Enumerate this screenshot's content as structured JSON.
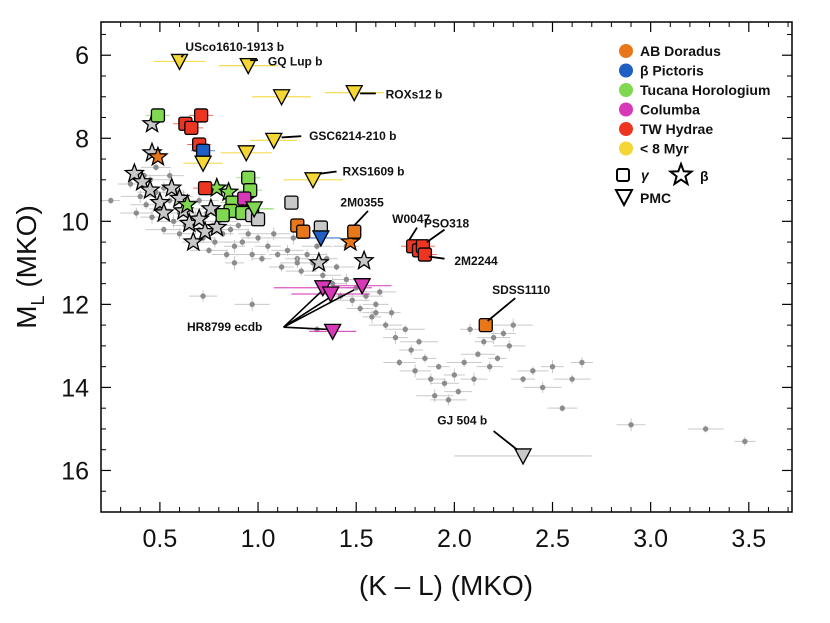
{
  "chart_data": {
    "type": "scatter",
    "xlabel": "(K – L) (MKO)",
    "ylabel_main": "M",
    "ylabel_sub": "L",
    "ylabel_rest": " (MKO)",
    "xlim": [
      0.2,
      3.72
    ],
    "ylim": [
      17.0,
      5.2
    ],
    "xticks": [
      0.5,
      1.0,
      1.5,
      2.0,
      2.5,
      3.0,
      3.5
    ],
    "xtick_labels": [
      "0.5",
      "1.0",
      "1.5",
      "2.0",
      "2.5",
      "3.0",
      "3.5"
    ],
    "yticks": [
      6,
      8,
      10,
      12,
      14,
      16
    ],
    "ytick_labels": [
      "6",
      "8",
      "10",
      "12",
      "14",
      "16"
    ],
    "colors": {
      "AB Doradus": "#e8771a",
      "β Pictoris": "#1f5fc4",
      "Tucana Horologium": "#7fd84f",
      "Columba": "#d838b8",
      "TW Hydrae": "#ee3522",
      "< 8 Myr": "#f4d634",
      "field": "#8c8c8c",
      "neutral": "#c8c8c8"
    },
    "legend": {
      "groups": [
        {
          "label": "AB Doradus",
          "color": "#e8771a"
        },
        {
          "label": "β Pictoris",
          "color": "#1f5fc4"
        },
        {
          "label": "Tucana Horologium",
          "color": "#7fd84f"
        },
        {
          "label": "Columba",
          "color": "#d838b8"
        },
        {
          "label": "TW Hydrae",
          "color": "#ee3522"
        },
        {
          "label": "< 8 Myr",
          "color": "#f4d634"
        }
      ],
      "gamma_label": "γ",
      "beta_label": "β",
      "pmc_label": "PMC",
      "placement": "top-right"
    },
    "field_points": [
      [
        0.25,
        9.5
      ],
      [
        0.35,
        9.1
      ],
      [
        0.38,
        9.8
      ],
      [
        0.4,
        9.4
      ],
      [
        0.42,
        8.9
      ],
      [
        0.43,
        9.6
      ],
      [
        0.45,
        9.0
      ],
      [
        0.46,
        9.9
      ],
      [
        0.48,
        8.7
      ],
      [
        0.48,
        9.3
      ],
      [
        0.5,
        9.7
      ],
      [
        0.52,
        9.2
      ],
      [
        0.52,
        10.2
      ],
      [
        0.55,
        9.5
      ],
      [
        0.55,
        8.9
      ],
      [
        0.57,
        10.0
      ],
      [
        0.58,
        9.3
      ],
      [
        0.6,
        9.8
      ],
      [
        0.6,
        10.3
      ],
      [
        0.62,
        9.4
      ],
      [
        0.63,
        10.1
      ],
      [
        0.65,
        9.7
      ],
      [
        0.66,
        10.5
      ],
      [
        0.68,
        9.9
      ],
      [
        0.7,
        10.2
      ],
      [
        0.7,
        9.5
      ],
      [
        0.72,
        10.4
      ],
      [
        0.74,
        9.8
      ],
      [
        0.75,
        10.7
      ],
      [
        0.77,
        10.1
      ],
      [
        0.78,
        10.5
      ],
      [
        0.8,
        10.0
      ],
      [
        0.82,
        10.3
      ],
      [
        0.84,
        10.8
      ],
      [
        0.86,
        10.2
      ],
      [
        0.88,
        10.6
      ],
      [
        0.9,
        10.1
      ],
      [
        0.92,
        10.5
      ],
      [
        0.95,
        10.3
      ],
      [
        0.97,
        10.8
      ],
      [
        1.0,
        10.4
      ],
      [
        1.02,
        10.9
      ],
      [
        1.05,
        10.6
      ],
      [
        1.08,
        10.3
      ],
      [
        1.1,
        10.8
      ],
      [
        1.12,
        11.1
      ],
      [
        1.15,
        10.7
      ],
      [
        1.18,
        10.4
      ],
      [
        1.2,
        10.9
      ],
      [
        1.22,
        11.2
      ],
      [
        1.25,
        10.8
      ],
      [
        1.28,
        11.0
      ],
      [
        1.3,
        10.6
      ],
      [
        1.33,
        11.3
      ],
      [
        1.35,
        10.9
      ],
      [
        1.38,
        11.5
      ],
      [
        1.4,
        11.1
      ],
      [
        1.42,
        11.8
      ],
      [
        1.45,
        11.4
      ],
      [
        1.48,
        11.9
      ],
      [
        1.5,
        11.6
      ],
      [
        1.52,
        12.1
      ],
      [
        1.55,
        11.8
      ],
      [
        1.58,
        12.3
      ],
      [
        1.6,
        12.0
      ],
      [
        1.65,
        12.5
      ],
      [
        1.68,
        12.2
      ],
      [
        1.7,
        12.8
      ],
      [
        1.72,
        13.4
      ],
      [
        1.75,
        12.6
      ],
      [
        1.78,
        13.1
      ],
      [
        1.8,
        13.6
      ],
      [
        1.82,
        12.9
      ],
      [
        1.85,
        13.3
      ],
      [
        1.88,
        13.8
      ],
      [
        1.9,
        14.2
      ],
      [
        1.92,
        13.5
      ],
      [
        1.95,
        13.9
      ],
      [
        1.97,
        14.3
      ],
      [
        2.0,
        13.7
      ],
      [
        2.02,
        14.1
      ],
      [
        2.05,
        13.4
      ],
      [
        2.08,
        12.6
      ],
      [
        2.1,
        13.8
      ],
      [
        2.12,
        13.2
      ],
      [
        2.15,
        12.9
      ],
      [
        2.18,
        13.5
      ],
      [
        2.2,
        12.8
      ],
      [
        2.22,
        13.3
      ],
      [
        2.25,
        12.7
      ],
      [
        2.28,
        13.0
      ],
      [
        2.3,
        12.5
      ],
      [
        2.35,
        13.8
      ],
      [
        2.4,
        13.6
      ],
      [
        2.45,
        14.0
      ],
      [
        2.5,
        13.5
      ],
      [
        2.55,
        14.5
      ],
      [
        2.6,
        13.8
      ],
      [
        2.65,
        13.4
      ],
      [
        2.9,
        14.9
      ],
      [
        3.28,
        15.0
      ],
      [
        3.48,
        15.3
      ],
      [
        0.72,
        11.8
      ],
      [
        0.97,
        12.0
      ],
      [
        1.3,
        12.6
      ],
      [
        1.6,
        12.2
      ],
      [
        1.2,
        11.0
      ],
      [
        0.88,
        11.0
      ],
      [
        1.45,
        10.6
      ],
      [
        1.62,
        11.7
      ]
    ],
    "gamma_squares": [
      {
        "x": 0.49,
        "y": 7.45,
        "g": "Tucana Horologium"
      },
      {
        "x": 0.63,
        "y": 7.65,
        "g": "TW Hydrae"
      },
      {
        "x": 0.66,
        "y": 7.75,
        "g": "TW Hydrae"
      },
      {
        "x": 0.71,
        "y": 7.45,
        "g": "TW Hydrae"
      },
      {
        "x": 0.7,
        "y": 8.15,
        "g": "TW Hydrae"
      },
      {
        "x": 0.72,
        "y": 8.3,
        "g": "β Pictoris"
      },
      {
        "x": 0.73,
        "y": 9.2,
        "g": "TW Hydrae"
      },
      {
        "x": 0.95,
        "y": 8.95,
        "g": "Tucana Horologium"
      },
      {
        "x": 0.96,
        "y": 9.25,
        "g": "Tucana Horologium"
      },
      {
        "x": 0.87,
        "y": 9.55,
        "g": "Tucana Horologium"
      },
      {
        "x": 0.86,
        "y": 9.75,
        "g": "Tucana Horologium"
      },
      {
        "x": 0.82,
        "y": 9.85,
        "g": "Tucana Horologium"
      },
      {
        "x": 0.92,
        "y": 9.8,
        "g": "Tucana Horologium"
      },
      {
        "x": 0.97,
        "y": 9.85,
        "g": "neutral"
      },
      {
        "x": 1.0,
        "y": 9.95,
        "g": "neutral"
      },
      {
        "x": 0.93,
        "y": 9.45,
        "g": "Columba"
      },
      {
        "x": 1.17,
        "y": 9.55,
        "g": "neutral"
      },
      {
        "x": 1.2,
        "y": 10.1,
        "g": "AB Doradus"
      },
      {
        "x": 1.23,
        "y": 10.25,
        "g": "AB Doradus"
      },
      {
        "x": 1.32,
        "y": 10.15,
        "g": "neutral"
      },
      {
        "x": 1.49,
        "y": 10.25,
        "g": "AB Doradus"
      },
      {
        "x": 1.79,
        "y": 10.6,
        "g": "TW Hydrae"
      },
      {
        "x": 1.82,
        "y": 10.7,
        "g": "TW Hydrae"
      },
      {
        "x": 1.84,
        "y": 10.6,
        "g": "TW Hydrae"
      },
      {
        "x": 1.85,
        "y": 10.8,
        "g": "TW Hydrae"
      },
      {
        "x": 2.16,
        "y": 12.5,
        "g": "AB Doradus"
      }
    ],
    "beta_stars": [
      {
        "x": 0.46,
        "y": 7.65,
        "g": "neutral"
      },
      {
        "x": 0.46,
        "y": 8.35,
        "g": "neutral"
      },
      {
        "x": 0.49,
        "y": 8.45,
        "g": "AB Doradus"
      },
      {
        "x": 0.37,
        "y": 8.85,
        "g": "neutral"
      },
      {
        "x": 0.41,
        "y": 9.05,
        "g": "neutral"
      },
      {
        "x": 0.45,
        "y": 9.25,
        "g": "neutral"
      },
      {
        "x": 0.5,
        "y": 9.55,
        "g": "neutral"
      },
      {
        "x": 0.52,
        "y": 9.8,
        "g": "neutral"
      },
      {
        "x": 0.56,
        "y": 9.2,
        "g": "neutral"
      },
      {
        "x": 0.6,
        "y": 9.45,
        "g": "neutral"
      },
      {
        "x": 0.62,
        "y": 9.75,
        "g": "neutral"
      },
      {
        "x": 0.65,
        "y": 10.05,
        "g": "neutral"
      },
      {
        "x": 0.67,
        "y": 10.5,
        "g": "neutral"
      },
      {
        "x": 0.7,
        "y": 9.95,
        "g": "neutral"
      },
      {
        "x": 0.73,
        "y": 10.25,
        "g": "neutral"
      },
      {
        "x": 0.76,
        "y": 9.7,
        "g": "neutral"
      },
      {
        "x": 0.79,
        "y": 10.15,
        "g": "neutral"
      },
      {
        "x": 0.64,
        "y": 9.6,
        "g": "Tucana Horologium"
      },
      {
        "x": 0.79,
        "y": 9.2,
        "g": "Tucana Horologium"
      },
      {
        "x": 0.85,
        "y": 9.3,
        "g": "Tucana Horologium"
      },
      {
        "x": 0.93,
        "y": 9.5,
        "g": "Columba"
      },
      {
        "x": 1.31,
        "y": 11.0,
        "g": "neutral"
      },
      {
        "x": 1.47,
        "y": 10.5,
        "g": "AB Doradus"
      },
      {
        "x": 1.54,
        "y": 10.95,
        "g": "neutral"
      }
    ],
    "pmc_triangles": [
      {
        "x": 0.6,
        "y": 6.15,
        "g": "< 8 Myr",
        "xerr": 0.13
      },
      {
        "x": 0.95,
        "y": 6.25,
        "g": "< 8 Myr",
        "xerr": 0.15
      },
      {
        "x": 1.12,
        "y": 7.0,
        "g": "< 8 Myr",
        "xerr": 0.15
      },
      {
        "x": 1.49,
        "y": 6.9,
        "g": "< 8 Myr",
        "xerr": 0.15
      },
      {
        "x": 1.08,
        "y": 8.05,
        "g": "< 8 Myr",
        "xerr": 0.12
      },
      {
        "x": 0.94,
        "y": 8.35,
        "g": "< 8 Myr",
        "xerr": 0.13
      },
      {
        "x": 0.72,
        "y": 8.6,
        "g": "< 8 Myr",
        "xerr": 0.1
      },
      {
        "x": 1.28,
        "y": 9.0,
        "g": "< 8 Myr",
        "xerr": 0.15
      },
      {
        "x": 0.98,
        "y": 9.7,
        "g": "Tucana Horologium",
        "xerr": 0.1
      },
      {
        "x": 1.32,
        "y": 10.4,
        "g": "β Pictoris",
        "xerr": 0.1
      },
      {
        "x": 1.33,
        "y": 11.6,
        "g": "Columba",
        "xerr": 0.25
      },
      {
        "x": 1.37,
        "y": 11.75,
        "g": "Columba",
        "xerr": 0.2
      },
      {
        "x": 1.53,
        "y": 11.55,
        "g": "Columba",
        "xerr": 0.15
      },
      {
        "x": 1.38,
        "y": 12.65,
        "g": "Columba",
        "xerr": 0.12
      },
      {
        "x": 2.35,
        "y": 15.65,
        "g": "neutral",
        "xerr": 0.35
      }
    ],
    "annotations": [
      {
        "text": "USco1610-1913 b",
        "tx": 0.63,
        "ty": 5.8,
        "ax": 0.62,
        "ay": 5.98,
        "bx": 0.61,
        "by": 6.05,
        "anchor": "start",
        "tshift": -0.19
      },
      {
        "text": "GQ Lup b",
        "tx": 1.05,
        "ty": 6.15,
        "ax": 1.0,
        "ay": 6.12,
        "bx": 0.96,
        "by": 6.12,
        "anchor": "start",
        "tshift": 0.05
      },
      {
        "text": "ROXs12 b",
        "tx": 1.65,
        "ty": 6.95,
        "ax": 1.6,
        "ay": 6.92,
        "bx": 1.52,
        "by": 6.92,
        "anchor": "start",
        "tshift": 0.05
      },
      {
        "text": "GSC6214-210 b",
        "tx": 1.26,
        "ty": 7.95,
        "ax": 1.22,
        "ay": 7.95,
        "bx": 1.12,
        "by": 7.98,
        "anchor": "start",
        "tshift": 0.04
      },
      {
        "text": "RXS1609 b",
        "tx": 1.43,
        "ty": 8.8,
        "ax": 1.4,
        "ay": 8.8,
        "bx": 1.32,
        "by": 8.85,
        "anchor": "start",
        "tshift": 0.05
      },
      {
        "text": "2M0355",
        "tx": 1.53,
        "ty": 9.55,
        "ax": 1.56,
        "ay": 9.75,
        "bx": 1.49,
        "by": 10.1,
        "anchor": "middle",
        "tshift": 0
      },
      {
        "text": "W0047",
        "tx": 1.78,
        "ty": 9.95,
        "ax": 1.81,
        "ay": 10.15,
        "bx": 1.77,
        "by": 10.45,
        "anchor": "middle",
        "tshift": 0
      },
      {
        "text": "PSO318",
        "tx": 1.96,
        "ty": 10.05,
        "ax": 1.95,
        "ay": 10.2,
        "bx": 1.86,
        "by": 10.5,
        "anchor": "middle",
        "tshift": 0
      },
      {
        "text": "2M2244",
        "tx": 2.0,
        "ty": 10.95,
        "ax": 1.95,
        "ay": 10.9,
        "bx": 1.87,
        "by": 10.85,
        "anchor": "start",
        "tshift": 0.05
      },
      {
        "text": "SDSS1110",
        "tx": 2.34,
        "ty": 11.65,
        "ax": 2.31,
        "ay": 11.85,
        "bx": 2.17,
        "by": 12.4,
        "anchor": "middle",
        "tshift": 0
      },
      {
        "text": "GJ 504 b",
        "tx": 2.04,
        "ty": 14.8,
        "ax": 2.2,
        "ay": 15.05,
        "bx": 2.32,
        "by": 15.5,
        "anchor": "middle",
        "tshift": 0
      }
    ],
    "hr8799": {
      "text": "HR8799 ecdb",
      "tx": 0.83,
      "ty": 12.55,
      "ox": 1.13,
      "oy": 12.55,
      "targets": [
        [
          1.32,
          11.7
        ],
        [
          1.36,
          11.85
        ],
        [
          1.49,
          11.65
        ],
        [
          1.35,
          12.6
        ]
      ]
    }
  }
}
